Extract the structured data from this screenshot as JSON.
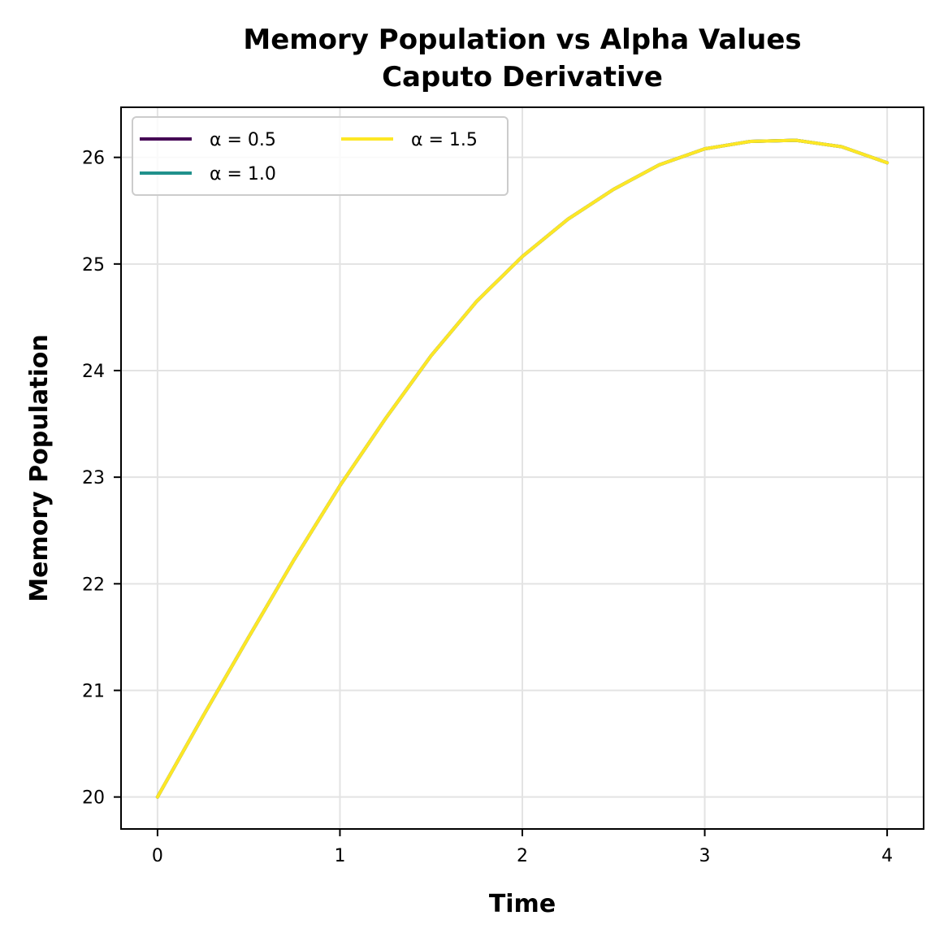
{
  "chart_data": {
    "type": "line",
    "title": "Memory Population vs Alpha Values",
    "subtitle": "Caputo Derivative",
    "xlabel": "Time",
    "ylabel": "Memory Population",
    "xlim": [
      -0.2,
      4.2
    ],
    "ylim": [
      19.7,
      26.47
    ],
    "xticks": [
      "0",
      "1",
      "2",
      "3",
      "4"
    ],
    "yticks": [
      "20",
      "21",
      "22",
      "23",
      "24",
      "25",
      "26"
    ],
    "grid": true,
    "legend_position": "upper-left",
    "legend_columns": 2,
    "x": [
      0,
      0.25,
      0.5,
      0.75,
      1.0,
      1.25,
      1.5,
      1.75,
      2.0,
      2.25,
      2.5,
      2.75,
      3.0,
      3.25,
      3.5,
      3.75,
      4.0
    ],
    "series": [
      {
        "name": "α = 0.5",
        "color": "#440154",
        "values": [
          20.0,
          20.76,
          21.5,
          22.23,
          22.92,
          23.55,
          24.14,
          24.65,
          25.07,
          25.42,
          25.7,
          25.93,
          26.08,
          26.15,
          26.16,
          26.1,
          25.95
        ]
      },
      {
        "name": "α = 1.0",
        "color": "#21918c",
        "values": [
          20.0,
          20.76,
          21.5,
          22.23,
          22.92,
          23.55,
          24.14,
          24.65,
          25.07,
          25.42,
          25.7,
          25.93,
          26.08,
          26.15,
          26.16,
          26.1,
          25.95
        ]
      },
      {
        "name": "α = 1.5",
        "color": "#fde725",
        "values": [
          20.0,
          20.76,
          21.5,
          22.23,
          22.92,
          23.55,
          24.14,
          24.65,
          25.07,
          25.42,
          25.7,
          25.93,
          26.08,
          26.15,
          26.16,
          26.1,
          25.95
        ]
      }
    ]
  }
}
